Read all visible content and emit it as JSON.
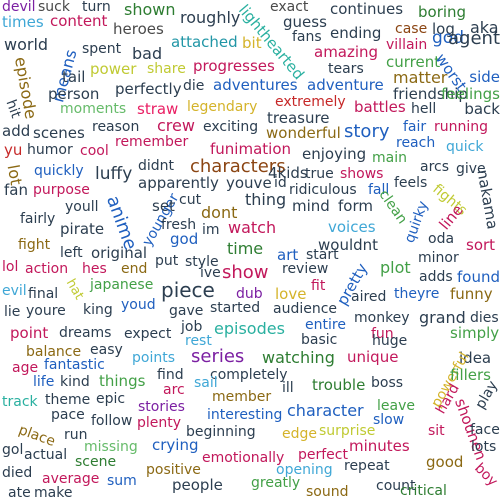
{
  "cloud": {
    "background": "#ffffff",
    "words": [
      {
        "text": "devil",
        "color": "#7b1fa2"
      },
      {
        "text": "suck",
        "color": "#4a4a4a"
      },
      {
        "text": "turn",
        "color": "#2c3e50"
      },
      {
        "text": "shown",
        "color": "#2e7d32"
      },
      {
        "text": "exact",
        "color": "#4a4a4a"
      },
      {
        "text": "continues",
        "color": "#2c3e50"
      },
      {
        "text": "boring",
        "color": "#2e7d32"
      },
      {
        "text": "times",
        "color": "#3fa7d6"
      },
      {
        "text": "content",
        "color": "#c2185b"
      },
      {
        "text": "roughly",
        "color": "#2c3e50"
      },
      {
        "text": "guess",
        "color": "#2c3e50"
      },
      {
        "text": "case",
        "color": "#8b4513"
      },
      {
        "text": "log",
        "color": "#2c3e50"
      },
      {
        "text": "aka",
        "color": "#2c3e50"
      },
      {
        "text": "heroes",
        "color": "#4a4a4a"
      },
      {
        "text": "lighthearted",
        "color": "#2ab0a0"
      },
      {
        "text": "fans",
        "color": "#2c3e50"
      },
      {
        "text": "ending",
        "color": "#2c3e50"
      },
      {
        "text": "god",
        "color": "#1f5fbf"
      },
      {
        "text": "agent",
        "color": "#2c3e50"
      },
      {
        "text": "world",
        "color": "#2c3e50"
      },
      {
        "text": "spent",
        "color": "#2c3e50"
      },
      {
        "text": "attached",
        "color": "#2196a6"
      },
      {
        "text": "bit",
        "color": "#d4b32a"
      },
      {
        "text": "amazing",
        "color": "#c2185b"
      },
      {
        "text": "villain",
        "color": "#c2185b"
      },
      {
        "text": "means",
        "color": "#1f5fbf"
      },
      {
        "text": "bad",
        "color": "#2c3e50"
      },
      {
        "text": "episode",
        "color": "#8b6914"
      },
      {
        "text": "tail",
        "color": "#2c3e50"
      },
      {
        "text": "power",
        "color": "#c0ca33"
      },
      {
        "text": "share",
        "color": "#c0ca33"
      },
      {
        "text": "progresses",
        "color": "#c2185b"
      },
      {
        "text": "tears",
        "color": "#2c3e50"
      },
      {
        "text": "current",
        "color": "#43a047"
      },
      {
        "text": "worst",
        "color": "#1f5fbf"
      },
      {
        "text": "matter",
        "color": "#8b6914"
      },
      {
        "text": "side",
        "color": "#1f5fbf"
      },
      {
        "text": "person",
        "color": "#2c3e50"
      },
      {
        "text": "perfectly",
        "color": "#2c3e50"
      },
      {
        "text": "die",
        "color": "#2c3e50"
      },
      {
        "text": "adventures",
        "color": "#1f5fbf"
      },
      {
        "text": "adventure",
        "color": "#1f5fbf"
      },
      {
        "text": "friendship",
        "color": "#2c3e50"
      },
      {
        "text": "feelings",
        "color": "#43a047"
      },
      {
        "text": "moments",
        "color": "#66bb6a"
      },
      {
        "text": "straw",
        "color": "#e91e63"
      },
      {
        "text": "legendary",
        "color": "#d4b32a"
      },
      {
        "text": "extremely",
        "color": "#c62828"
      },
      {
        "text": "battles",
        "color": "#c2185b"
      },
      {
        "text": "hell",
        "color": "#2c3e50"
      },
      {
        "text": "back",
        "color": "#2c3e50"
      },
      {
        "text": "hit",
        "color": "#2c3e50"
      },
      {
        "text": "treasure",
        "color": "#2c3e50"
      },
      {
        "text": "add",
        "color": "#2c3e50"
      },
      {
        "text": "scenes",
        "color": "#2c3e50"
      },
      {
        "text": "reason",
        "color": "#2c3e50"
      },
      {
        "text": "crew",
        "color": "#c2185b"
      },
      {
        "text": "exciting",
        "color": "#2c3e50"
      },
      {
        "text": "wonderful",
        "color": "#8b6914"
      },
      {
        "text": "story",
        "color": "#1f5fbf"
      },
      {
        "text": "fair",
        "color": "#1f5fbf"
      },
      {
        "text": "running",
        "color": "#c2185b"
      },
      {
        "text": "reach",
        "color": "#1f5fbf"
      },
      {
        "text": "quick",
        "color": "#3fa7d6"
      },
      {
        "text": "yu",
        "color": "#c62828"
      },
      {
        "text": "humor",
        "color": "#2c3e50"
      },
      {
        "text": "cool",
        "color": "#c2185b"
      },
      {
        "text": "remember",
        "color": "#c2185b"
      },
      {
        "text": "funimation",
        "color": "#c2185b"
      },
      {
        "text": "enjoying",
        "color": "#2c3e50"
      },
      {
        "text": "main",
        "color": "#43a047"
      },
      {
        "text": "lot",
        "color": "#8b6914"
      },
      {
        "text": "quickly",
        "color": "#1f5fbf"
      },
      {
        "text": "didnt",
        "color": "#2c3e50"
      },
      {
        "text": "characters",
        "color": "#8b4513"
      },
      {
        "text": "4kids",
        "color": "#2c3e50"
      },
      {
        "text": "true",
        "color": "#2c3e50"
      },
      {
        "text": "shows",
        "color": "#c2185b"
      },
      {
        "text": "arcs",
        "color": "#2c3e50"
      },
      {
        "text": "give",
        "color": "#2c3e50"
      },
      {
        "text": "fan",
        "color": "#2c3e50"
      },
      {
        "text": "purpose",
        "color": "#c2185b"
      },
      {
        "text": "luffy",
        "color": "#2c3e50"
      },
      {
        "text": "apparently",
        "color": "#2c3e50"
      },
      {
        "text": "youve",
        "color": "#2c3e50"
      },
      {
        "text": "id",
        "color": "#2c3e50"
      },
      {
        "text": "ridiculous",
        "color": "#2c3e50"
      },
      {
        "text": "fall",
        "color": "#1f5fbf"
      },
      {
        "text": "feels",
        "color": "#2c3e50"
      },
      {
        "text": "fights",
        "color": "#c0ca33"
      },
      {
        "text": "nakama",
        "color": "#2c3e50"
      },
      {
        "text": "youll",
        "color": "#2c3e50"
      },
      {
        "text": "cut",
        "color": "#2c3e50"
      },
      {
        "text": "thing",
        "color": "#2c3e50"
      },
      {
        "text": "mind",
        "color": "#2c3e50"
      },
      {
        "text": "form",
        "color": "#2c3e50"
      },
      {
        "text": "clean",
        "color": "#43a047"
      },
      {
        "text": "fairly",
        "color": "#2c3e50"
      },
      {
        "text": "anime",
        "color": "#1f5fbf"
      },
      {
        "text": "younger",
        "color": "#1f5fbf"
      },
      {
        "text": "set",
        "color": "#2c3e50"
      },
      {
        "text": "dont",
        "color": "#8b6914"
      },
      {
        "text": "quirky",
        "color": "#1f5fbf"
      },
      {
        "text": "line",
        "color": "#c2185b"
      },
      {
        "text": "fresh",
        "color": "#2c3e50"
      },
      {
        "text": "pirate",
        "color": "#2c3e50"
      },
      {
        "text": "im",
        "color": "#2c3e50"
      },
      {
        "text": "watch",
        "color": "#c2185b"
      },
      {
        "text": "voices",
        "color": "#3fa7d6"
      },
      {
        "text": "oda",
        "color": "#2c3e50"
      },
      {
        "text": "fight",
        "color": "#8b6914"
      },
      {
        "text": "god",
        "color": "#1f5fbf"
      },
      {
        "text": "time",
        "color": "#2e7d32"
      },
      {
        "text": "wouldnt",
        "color": "#2c3e50"
      },
      {
        "text": "sort",
        "color": "#c2185b"
      },
      {
        "text": "left",
        "color": "#2c3e50"
      },
      {
        "text": "original",
        "color": "#2c3e50"
      },
      {
        "text": "art",
        "color": "#1f5fbf"
      },
      {
        "text": "start",
        "color": "#2c3e50"
      },
      {
        "text": "minor",
        "color": "#2c3e50"
      },
      {
        "text": "lol",
        "color": "#c2185b"
      },
      {
        "text": "action",
        "color": "#c2185b"
      },
      {
        "text": "hes",
        "color": "#c2185b"
      },
      {
        "text": "end",
        "color": "#8b6914"
      },
      {
        "text": "put",
        "color": "#2c3e50"
      },
      {
        "text": "style",
        "color": "#2c3e50"
      },
      {
        "text": "ive",
        "color": "#2c3e50"
      },
      {
        "text": "show",
        "color": "#c2185b"
      },
      {
        "text": "review",
        "color": "#2c3e50"
      },
      {
        "text": "plot",
        "color": "#43a047"
      },
      {
        "text": "adds",
        "color": "#2c3e50"
      },
      {
        "text": "found",
        "color": "#1f5fbf"
      },
      {
        "text": "evil",
        "color": "#3fa7d6"
      },
      {
        "text": "japanese",
        "color": "#43a047"
      },
      {
        "text": "final",
        "color": "#2c3e50"
      },
      {
        "text": "hat",
        "color": "#c0ca33"
      },
      {
        "text": "piece",
        "color": "#2c3e50"
      },
      {
        "text": "dub",
        "color": "#7b1fa2"
      },
      {
        "text": "love",
        "color": "#d4b32a"
      },
      {
        "text": "fit",
        "color": "#c2185b"
      },
      {
        "text": "pretty",
        "color": "#1f5fbf"
      },
      {
        "text": "aired",
        "color": "#2c3e50"
      },
      {
        "text": "theyre",
        "color": "#1f5fbf"
      },
      {
        "text": "funny",
        "color": "#8b6914"
      },
      {
        "text": "lie",
        "color": "#2c3e50"
      },
      {
        "text": "youre",
        "color": "#2c3e50"
      },
      {
        "text": "king",
        "color": "#2c3e50"
      },
      {
        "text": "youd",
        "color": "#1f5fbf"
      },
      {
        "text": "gave",
        "color": "#2c3e50"
      },
      {
        "text": "started",
        "color": "#2c3e50"
      },
      {
        "text": "audience",
        "color": "#2c3e50"
      },
      {
        "text": "monkey",
        "color": "#2c3e50"
      },
      {
        "text": "grand",
        "color": "#2c3e50"
      },
      {
        "text": "dies",
        "color": "#2c3e50"
      },
      {
        "text": "point",
        "color": "#c2185b"
      },
      {
        "text": "dreams",
        "color": "#2c3e50"
      },
      {
        "text": "expect",
        "color": "#2c3e50"
      },
      {
        "text": "job",
        "color": "#2c3e50"
      },
      {
        "text": "episodes",
        "color": "#2ab0a0"
      },
      {
        "text": "entire",
        "color": "#1f5fbf"
      },
      {
        "text": "fun",
        "color": "#c2185b"
      },
      {
        "text": "simply",
        "color": "#43a047"
      },
      {
        "text": "balance",
        "color": "#8b6914"
      },
      {
        "text": "easy",
        "color": "#2c3e50"
      },
      {
        "text": "rest",
        "color": "#3fa7d6"
      },
      {
        "text": "basic",
        "color": "#2c3e50"
      },
      {
        "text": "huge",
        "color": "#2c3e50"
      },
      {
        "text": "age",
        "color": "#c2185b"
      },
      {
        "text": "fantastic",
        "color": "#1f5fbf"
      },
      {
        "text": "points",
        "color": "#3fa7d6"
      },
      {
        "text": "series",
        "color": "#7b1fa2"
      },
      {
        "text": "watching",
        "color": "#2e7d32"
      },
      {
        "text": "unique",
        "color": "#c2185b"
      },
      {
        "text": "idea",
        "color": "#2c3e50"
      },
      {
        "text": "life",
        "color": "#1f5fbf"
      },
      {
        "text": "kind",
        "color": "#2c3e50"
      },
      {
        "text": "things",
        "color": "#43a047"
      },
      {
        "text": "find",
        "color": "#2c3e50"
      },
      {
        "text": "completely",
        "color": "#2c3e50"
      },
      {
        "text": "powerful",
        "color": "#d4b32a"
      },
      {
        "text": "fillers",
        "color": "#43a047"
      },
      {
        "text": "track",
        "color": "#2ab0a0"
      },
      {
        "text": "theme",
        "color": "#2c3e50"
      },
      {
        "text": "epic",
        "color": "#2c3e50"
      },
      {
        "text": "arc",
        "color": "#c2185b"
      },
      {
        "text": "sail",
        "color": "#3fa7d6"
      },
      {
        "text": "ill",
        "color": "#2c3e50"
      },
      {
        "text": "trouble",
        "color": "#2e7d32"
      },
      {
        "text": "boss",
        "color": "#2c3e50"
      },
      {
        "text": "hard",
        "color": "#c2185b"
      },
      {
        "text": "play",
        "color": "#2c3e50"
      },
      {
        "text": "pace",
        "color": "#2c3e50"
      },
      {
        "text": "member",
        "color": "#8b6914"
      },
      {
        "text": "character",
        "color": "#1f5fbf"
      },
      {
        "text": "leave",
        "color": "#43a047"
      },
      {
        "text": "stories",
        "color": "#7b1fa2"
      },
      {
        "text": "interesting",
        "color": "#1f5fbf"
      },
      {
        "text": "slow",
        "color": "#1f5fbf"
      },
      {
        "text": "shounen",
        "color": "#c2185b"
      },
      {
        "text": "place",
        "color": "#8b6914"
      },
      {
        "text": "run",
        "color": "#2c3e50"
      },
      {
        "text": "follow",
        "color": "#2c3e50"
      },
      {
        "text": "plenty",
        "color": "#c2185b"
      },
      {
        "text": "beginning",
        "color": "#2c3e50"
      },
      {
        "text": "edge",
        "color": "#d4b32a"
      },
      {
        "text": "surprise",
        "color": "#c0ca33"
      },
      {
        "text": "sit",
        "color": "#c2185b"
      },
      {
        "text": "face",
        "color": "#2c3e50"
      },
      {
        "text": "gol",
        "color": "#2c3e50"
      },
      {
        "text": "missing",
        "color": "#66bb6a"
      },
      {
        "text": "crying",
        "color": "#1f5fbf"
      },
      {
        "text": "minutes",
        "color": "#c2185b"
      },
      {
        "text": "lots",
        "color": "#2c3e50"
      },
      {
        "text": "actual",
        "color": "#2c3e50"
      },
      {
        "text": "scene",
        "color": "#2e7d32"
      },
      {
        "text": "emotionally",
        "color": "#c2185b"
      },
      {
        "text": "perfect",
        "color": "#c2185b"
      },
      {
        "text": "repeat",
        "color": "#2c3e50"
      },
      {
        "text": "good",
        "color": "#8b6914"
      },
      {
        "text": "died",
        "color": "#2c3e50"
      },
      {
        "text": "positive",
        "color": "#8b6914"
      },
      {
        "text": "opening",
        "color": "#3fa7d6"
      },
      {
        "text": "boy",
        "color": "#c2185b"
      },
      {
        "text": "average",
        "color": "#c2185b"
      },
      {
        "text": "sum",
        "color": "#1f5fbf"
      },
      {
        "text": "count",
        "color": "#2c3e50"
      },
      {
        "text": "ate",
        "color": "#2c3e50"
      },
      {
        "text": "make",
        "color": "#2c3e50"
      },
      {
        "text": "people",
        "color": "#2c3e50"
      },
      {
        "text": "greatly",
        "color": "#43a047"
      },
      {
        "text": "sound",
        "color": "#8b6914"
      },
      {
        "text": "critical",
        "color": "#2e7d32"
      }
    ]
  }
}
